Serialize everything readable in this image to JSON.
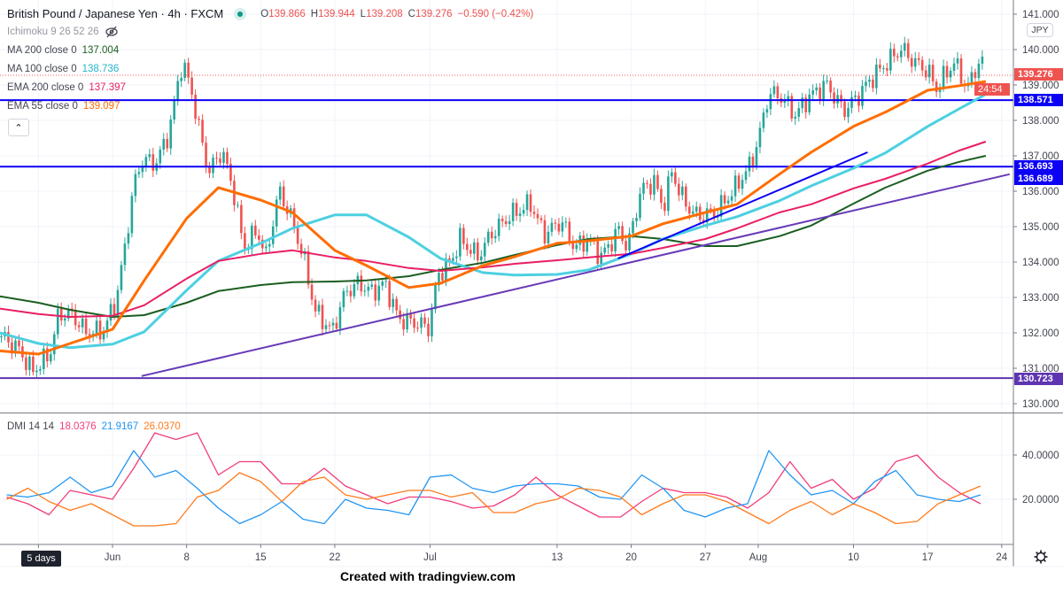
{
  "header": {
    "symbol_title": "British Pound / Japanese Yen · 4h · FXCM",
    "ohlc": {
      "o_label": "O",
      "o": "139.866",
      "h_label": "H",
      "h": "139.944",
      "l_label": "L",
      "l": "139.208",
      "c_label": "C",
      "c": "139.276",
      "change": "−0.590 (−0.42%)"
    },
    "ichimoku": "Ichimoku 9 26 52 26",
    "indicators": [
      {
        "label": "MA 200 close 0",
        "value": "137.004",
        "color": "#1b5e20"
      },
      {
        "label": "MA 100 close 0",
        "value": "138.736",
        "color": "#4dd0e1"
      },
      {
        "label": "EMA 200 close 0",
        "value": "137.397",
        "color": "#e91e63"
      },
      {
        "label": "EMA 55 close 0",
        "value": "139.097",
        "color": "#ff6d00"
      }
    ],
    "collapse_icon": "chevron-up-icon"
  },
  "currency_badge": "JPY",
  "price_labels": [
    {
      "text": "139.276",
      "color": "#ef5350"
    },
    {
      "text": "24:54",
      "color": "#ef5350"
    },
    {
      "text": "138.571",
      "color": "#0c00f5"
    },
    {
      "text": "136.693",
      "color": "#0c00f5"
    },
    {
      "text": "136.689",
      "color": "#0c00f5"
    },
    {
      "text": "130.723",
      "color": "#5e35b1"
    }
  ],
  "interval_button": "5 days",
  "watermark": "Created with tradingview.com",
  "chart_data": [
    {
      "type": "candlestick",
      "title": "British Pound / Japanese Yen · 4h · FXCM",
      "y_ticks": [
        "141.000",
        "140.000",
        "139.000",
        "138.000",
        "137.000",
        "136.000",
        "135.000",
        "134.000",
        "133.000",
        "132.000",
        "131.000",
        "130.000"
      ],
      "ylim": [
        129.5,
        141.4
      ],
      "x_ticks": [
        {
          "label": "",
          "date": "05-25"
        },
        {
          "label": "Jun",
          "date": "06-01"
        },
        {
          "label": "8",
          "date": "06-08"
        },
        {
          "label": "15",
          "date": "06-15"
        },
        {
          "label": "22",
          "date": "06-22"
        },
        {
          "label": "Jul",
          "date": "07-01"
        },
        {
          "label": "13",
          "date": "07-13"
        },
        {
          "label": "20",
          "date": "07-20"
        },
        {
          "label": "27",
          "date": "07-27"
        },
        {
          "label": "Aug",
          "date": "08-01"
        },
        {
          "label": "10",
          "date": "08-10"
        },
        {
          "label": "17",
          "date": "08-17"
        },
        {
          "label": "24",
          "date": "08-24"
        }
      ],
      "grid": true,
      "close_path": [
        [
          "05-21 12:00",
          131.9
        ],
        [
          "05-23 04:00",
          131.53
        ],
        [
          "05-24 10:00",
          130.9
        ],
        [
          "05-26 02:00",
          131.4
        ],
        [
          "05-26 22:00",
          132.53
        ],
        [
          "05-28 04:00",
          132.53
        ],
        [
          "05-29 10:00",
          132.03
        ],
        [
          "05-31 02:00",
          132.03
        ],
        [
          "06-01 08:00",
          132.9
        ],
        [
          "06-02 04:00",
          134.4
        ],
        [
          "06-03 00:00",
          136.15
        ],
        [
          "06-03 20:00",
          136.9
        ],
        [
          "06-05 02:00",
          136.78
        ],
        [
          "06-06 08:00",
          137.65
        ],
        [
          "06-07 04:00",
          139.03
        ],
        [
          "06-07 14:00",
          139.65
        ],
        [
          "06-08 10:00",
          138.9
        ],
        [
          "06-09 06:00",
          137.65
        ],
        [
          "06-10 02:00",
          136.53
        ],
        [
          "06-11 08:00",
          137.15
        ],
        [
          "06-12 08:00",
          136.15
        ],
        [
          "06-13 10:00",
          134.4
        ],
        [
          "06-14 16:00",
          134.9
        ],
        [
          "06-15 12:00",
          134.15
        ],
        [
          "06-16 18:00",
          136.03
        ],
        [
          "06-18 00:00",
          135.15
        ],
        [
          "06-19 06:00",
          133.9
        ],
        [
          "06-20 02:00",
          132.65
        ],
        [
          "06-21 18:00",
          132.03
        ],
        [
          "06-23 00:00",
          133.15
        ],
        [
          "06-24 06:00",
          133.4
        ],
        [
          "06-25 12:00",
          133.15
        ],
        [
          "06-26 18:00",
          133.4
        ],
        [
          "06-28 00:00",
          132.4
        ],
        [
          "06-29 16:00",
          132.28
        ],
        [
          "06-30 22:00",
          132.15
        ],
        [
          "07-01 18:00",
          133.65
        ],
        [
          "07-03 00:00",
          134.03
        ],
        [
          "07-03 20:00",
          134.65
        ],
        [
          "07-05 12:00",
          134.15
        ],
        [
          "07-06 18:00",
          134.78
        ],
        [
          "07-08 10:00",
          135.28
        ],
        [
          "07-10 12:00",
          135.65
        ],
        [
          "07-11 18:00",
          134.78
        ],
        [
          "07-13 10:00",
          135.15
        ],
        [
          "07-14 16:00",
          134.4
        ],
        [
          "07-15 22:00",
          134.65
        ],
        [
          "07-17 04:00",
          134.15
        ],
        [
          "07-18 20:00",
          134.9
        ],
        [
          "07-19 16:00",
          134.4
        ],
        [
          "07-20 22:00",
          136.03
        ],
        [
          "07-22 04:00",
          136.28
        ],
        [
          "07-23 00:00",
          135.53
        ],
        [
          "07-23 20:00",
          136.53
        ],
        [
          "07-25 02:00",
          135.65
        ],
        [
          "07-26 08:00",
          135.28
        ],
        [
          "07-28 00:00",
          135.4
        ],
        [
          "07-29 16:00",
          136.03
        ],
        [
          "07-31 08:00",
          136.78
        ],
        [
          "08-01 04:00",
          137.65
        ],
        [
          "08-02 00:00",
          138.78
        ],
        [
          "08-03 06:00",
          138.65
        ],
        [
          "08-04 12:00",
          138.15
        ],
        [
          "08-05 18:00",
          138.65
        ],
        [
          "08-07 10:00",
          139.03
        ],
        [
          "08-09 02:00",
          138.28
        ],
        [
          "08-10 08:00",
          138.65
        ],
        [
          "08-11 14:00",
          139.15
        ],
        [
          "08-12 20:00",
          139.53
        ],
        [
          "08-14 12:00",
          140.03
        ],
        [
          "08-15 18:00",
          139.65
        ],
        [
          "08-17 00:00",
          139.4
        ],
        [
          "08-17 20:00",
          138.9
        ],
        [
          "08-19 12:00",
          139.65
        ],
        [
          "08-20 18:00",
          138.9
        ],
        [
          "08-22 00:00",
          139.78
        ],
        [
          "08-22 10:00",
          139.28
        ]
      ],
      "ma_dates": [
        "05-21",
        "05-25",
        "05-28",
        "06-01",
        "06-04",
        "06-08",
        "06-11",
        "06-15",
        "06-18",
        "06-22",
        "06-25",
        "06-29",
        "07-02",
        "07-06",
        "07-09",
        "07-13",
        "07-16",
        "07-20",
        "07-23",
        "07-27",
        "07-30",
        "08-03",
        "08-06",
        "08-10",
        "08-13",
        "08-17",
        "08-20",
        "08-22 12:00"
      ],
      "series": [
        {
          "name": "MA 200 close 0",
          "color": "#1b5e20",
          "width": 2,
          "values": [
            133.05,
            132.85,
            132.65,
            132.45,
            132.5,
            132.85,
            133.18,
            133.35,
            133.43,
            133.45,
            133.48,
            133.6,
            133.78,
            133.98,
            134.2,
            134.48,
            134.65,
            134.73,
            134.65,
            134.45,
            134.45,
            134.73,
            135.03,
            135.65,
            136.1,
            136.58,
            136.83,
            137.0
          ]
        },
        {
          "name": "MA 100 close 0",
          "color": "#4dd0e1",
          "width": 3,
          "values": [
            132.03,
            131.7,
            131.58,
            131.68,
            132.03,
            133.2,
            134.03,
            134.53,
            134.95,
            135.33,
            135.33,
            134.7,
            134.1,
            133.7,
            133.63,
            133.65,
            133.78,
            134.23,
            134.65,
            135.03,
            135.28,
            135.73,
            136.15,
            136.65,
            137.08,
            137.83,
            138.33,
            138.74
          ]
        },
        {
          "name": "EMA 200 close 0",
          "color": "#e91e63",
          "width": 2,
          "values": [
            132.7,
            132.53,
            132.45,
            132.48,
            132.78,
            133.53,
            134.03,
            134.23,
            134.33,
            134.13,
            134.03,
            133.83,
            133.75,
            133.85,
            133.95,
            134.05,
            134.13,
            134.23,
            134.4,
            134.65,
            134.95,
            135.4,
            135.63,
            136.08,
            136.35,
            136.78,
            137.15,
            137.4
          ]
        },
        {
          "name": "EMA 55 close 0",
          "color": "#ff6d00",
          "width": 3,
          "values": [
            131.5,
            131.4,
            131.7,
            132.1,
            133.48,
            135.23,
            136.1,
            135.75,
            135.4,
            134.33,
            133.9,
            133.28,
            133.4,
            133.9,
            134.15,
            134.53,
            134.6,
            134.73,
            135.08,
            135.4,
            135.63,
            136.48,
            137.1,
            137.83,
            138.23,
            138.85,
            138.98,
            139.1
          ]
        }
      ],
      "trend_lines": [
        {
          "color": "#0c00f5",
          "from": [
            "07-18 18:00",
            134.1
          ],
          "to": [
            "08-11 08:00",
            137.1
          ]
        },
        {
          "color": "#673ab7",
          "from": [
            "06-03 18:00",
            130.78
          ],
          "to": [
            "08-24 18:00",
            136.48
          ]
        }
      ],
      "horizontal_lines": [
        {
          "price": 138.571,
          "color": "#0c00f5"
        },
        {
          "price": 136.693,
          "color": "#0c00f5"
        },
        {
          "price": 130.723,
          "color": "#5e35b1"
        }
      ],
      "last_price": 139.276
    },
    {
      "type": "line",
      "title": "DMI 14 14",
      "y_ticks": [
        "40.0000",
        "20.0000"
      ],
      "ylim": [
        0,
        60
      ],
      "x": [
        "05-22",
        "05-24",
        "05-26",
        "05-28",
        "05-30",
        "06-01",
        "06-03",
        "06-05",
        "06-07",
        "06-09",
        "06-11",
        "06-13",
        "06-15",
        "06-17",
        "06-19",
        "06-21",
        "06-23",
        "06-25",
        "06-27",
        "06-29",
        "07-01",
        "07-03",
        "07-05",
        "07-07",
        "07-09",
        "07-11",
        "07-13",
        "07-15",
        "07-17",
        "07-19",
        "07-21",
        "07-23",
        "07-25",
        "07-27",
        "07-29",
        "07-31",
        "08-02",
        "08-04",
        "08-06",
        "08-08",
        "08-10",
        "08-12",
        "08-14",
        "08-16",
        "08-18",
        "08-20",
        "08-22"
      ],
      "series": [
        {
          "value_label": "18.0376",
          "color": "#f23c7a",
          "values": [
            21,
            18,
            13,
            24,
            22,
            20,
            34,
            50,
            47,
            50,
            31,
            37,
            37,
            27,
            27,
            34,
            26,
            22,
            18,
            21,
            21,
            19,
            16,
            17,
            22,
            30,
            22,
            17,
            12,
            12,
            19,
            25,
            23,
            23,
            21,
            16,
            23,
            37,
            25,
            29,
            20,
            25,
            37,
            40,
            30,
            23,
            18
          ]
        },
        {
          "value_label": "21.9167",
          "color": "#2196f3",
          "values": [
            22,
            21,
            23,
            30,
            23,
            26,
            42,
            30,
            33,
            25,
            16,
            9,
            13,
            19,
            11,
            9,
            20,
            16,
            15,
            13,
            30,
            31,
            25,
            23,
            26,
            27,
            27,
            26,
            21,
            20,
            31,
            25,
            15,
            12,
            16,
            18,
            42,
            31,
            22,
            24,
            18,
            28,
            33,
            22,
            20,
            19,
            22
          ]
        },
        {
          "value_label": "26.0370",
          "color": "#ff7b1c",
          "values": [
            20,
            25,
            19,
            15,
            18,
            13,
            8,
            8,
            9,
            21,
            24,
            32,
            28,
            19,
            28,
            30,
            22,
            20,
            22,
            24,
            24,
            21,
            23,
            14,
            14,
            18,
            20,
            25,
            24,
            21,
            13,
            18,
            22,
            22,
            19,
            14,
            9,
            15,
            19,
            13,
            18,
            14,
            9,
            10,
            18,
            22,
            26
          ]
        }
      ]
    }
  ]
}
